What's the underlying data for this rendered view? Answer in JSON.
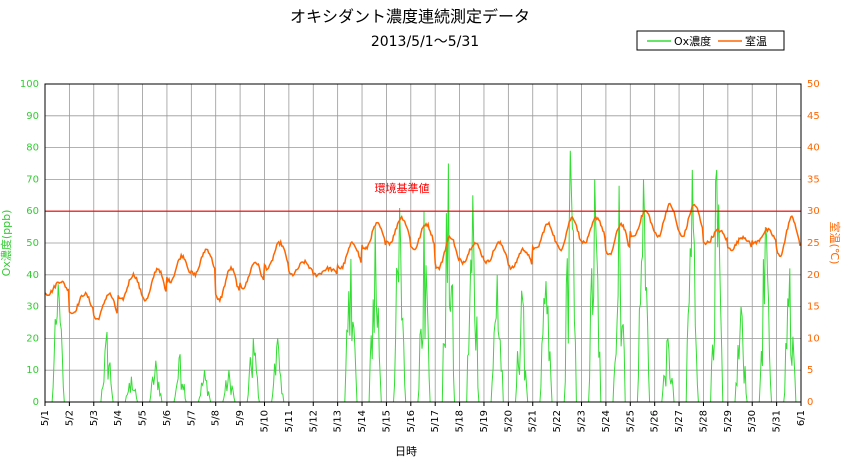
{
  "chart_data": {
    "type": "line",
    "title": "オキシダント濃度連続測定データ",
    "subtitle": "2013/5/1～5/31",
    "xlabel": "日時",
    "ylabel_left": "Ox濃度(ppb)",
    "ylabel_right": "室温(℃)",
    "ylim_left": [
      0,
      100
    ],
    "ylim_right": [
      0,
      50
    ],
    "yticks_left": [
      "0",
      "10",
      "20",
      "30",
      "40",
      "50",
      "60",
      "70",
      "80",
      "90",
      "100"
    ],
    "yticks_right": [
      "0",
      "5",
      "10",
      "15",
      "20",
      "25",
      "30",
      "35",
      "40",
      "45",
      "50"
    ],
    "x_categories": [
      "5/1",
      "5/2",
      "5/3",
      "5/4",
      "5/5",
      "5/6",
      "5/7",
      "5/8",
      "5/9",
      "5/10",
      "5/11",
      "5/12",
      "5/13",
      "5/14",
      "5/15",
      "5/16",
      "5/17",
      "5/18",
      "5/19",
      "5/20",
      "5/21",
      "5/22",
      "5/23",
      "5/24",
      "5/25",
      "5/26",
      "5/27",
      "5/28",
      "5/29",
      "5/30",
      "5/31",
      "6/1"
    ],
    "grid": true,
    "legend_position": "top-right",
    "reference_line": {
      "label": "環境基準値",
      "value": 60,
      "axis": "left",
      "color": "#ff0000"
    },
    "series": [
      {
        "name": "Ox濃度",
        "axis": "left",
        "color": "#33dd33",
        "daily_peaks": [
          37,
          0,
          22,
          8,
          13,
          15,
          10,
          10,
          20,
          20,
          0,
          0,
          45,
          55,
          61,
          60,
          75,
          65,
          40,
          35,
          38,
          79,
          70,
          68,
          70,
          20,
          73,
          73,
          30,
          55,
          42
        ]
      },
      {
        "name": "室温",
        "axis": "right",
        "color": "#ff6600",
        "daily_minmax": [
          [
            17,
            19
          ],
          [
            14,
            17
          ],
          [
            13,
            17
          ],
          [
            16,
            20
          ],
          [
            16,
            21
          ],
          [
            19,
            23
          ],
          [
            20,
            24
          ],
          [
            16,
            21
          ],
          [
            18,
            22
          ],
          [
            21,
            25
          ],
          [
            20,
            22
          ],
          [
            20,
            21
          ],
          [
            21,
            25
          ],
          [
            24,
            28
          ],
          [
            25,
            29
          ],
          [
            24,
            28
          ],
          [
            21,
            26
          ],
          [
            22,
            25
          ],
          [
            22,
            25
          ],
          [
            21,
            24
          ],
          [
            24,
            28
          ],
          [
            24,
            29
          ],
          [
            25,
            29
          ],
          [
            23,
            28
          ],
          [
            26,
            30
          ],
          [
            26,
            31
          ],
          [
            26,
            31
          ],
          [
            25,
            27
          ],
          [
            24,
            26
          ],
          [
            25,
            27
          ],
          [
            23,
            29
          ]
        ]
      }
    ]
  }
}
